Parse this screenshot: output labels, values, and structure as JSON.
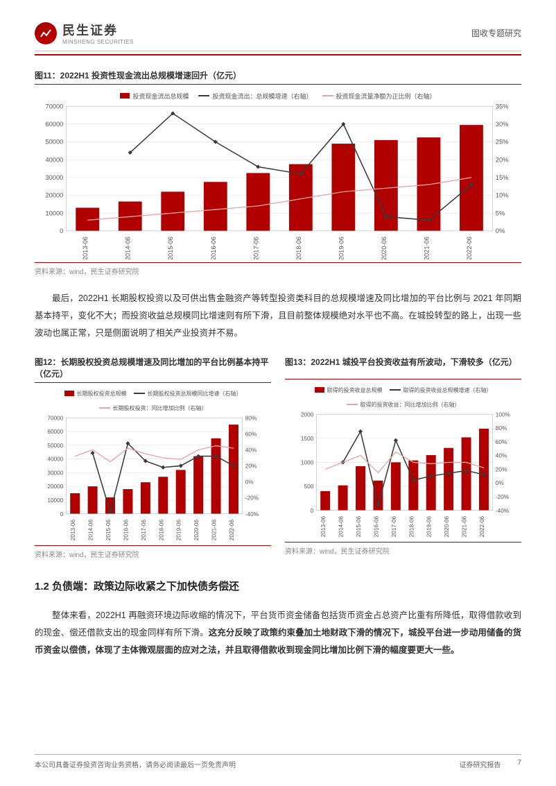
{
  "header": {
    "company_cn": "民生证券",
    "company_en": "MINSHENG SECURITIES",
    "category": "固收专题研究"
  },
  "fig11": {
    "title": "图11：2022H1 投资性现金流出总规模增速回升（亿元）",
    "source": "资料来源：wind，民生证券研究院",
    "legend": {
      "bar": "投资现金流出总规模",
      "line1": "投资现金流出：总规模增速（右轴）",
      "line2": "投资现金流量净额为正比例（右轴）"
    },
    "categories": [
      "2013-06",
      "2014-06",
      "2015-06",
      "2016-06",
      "2017-06",
      "2018-06",
      "2019-06",
      "2020-06",
      "2021-06",
      "2022-06"
    ],
    "bar_values": [
      13000,
      16500,
      22000,
      27500,
      32500,
      37500,
      49000,
      51000,
      52500,
      59500
    ],
    "line1_values": [
      null,
      22,
      33,
      25,
      18,
      16,
      30,
      4,
      3,
      13
    ],
    "line2_values": [
      3,
      4,
      5,
      6,
      7,
      9,
      11,
      12,
      13,
      15
    ],
    "ylim_left": [
      0,
      70000
    ],
    "ytick_left": [
      0,
      10000,
      20000,
      30000,
      40000,
      50000,
      60000,
      70000
    ],
    "ylim_right": [
      0,
      35
    ],
    "ytick_right": [
      "0%",
      "5%",
      "10%",
      "15%",
      "20%",
      "25%",
      "30%",
      "35%"
    ],
    "bar_color": "#b00000",
    "line1_color": "#3a3a3a",
    "line2_color": "#e8a4a4",
    "bg": "#ffffff"
  },
  "para1": "最后，2022H1 长期股权投资以及可供出售金融资产等转型投资类科目的总规模增速及同比增加的平台比例与 2021 年同期基本持平，变化不大；而投资收益总规模同比增速则有所下滑，且目前整体规模绝对水平也不高。在城投转型的路上，出现一些波动也属正常，只是侧面说明了相关产业投资并不易。",
  "fig12": {
    "title": "图12：长期股权投资总规模增速及同比增加的平台比例基本持平（亿元）",
    "source": "资料来源：wind，民生证券研究院",
    "legend": {
      "bar": "长期股权投资总规模",
      "line1": "长期股权投资总规模同比增速（右轴）",
      "line2": "长期股权投资：同比增加比例（右轴）"
    },
    "categories": [
      "2013-06",
      "2014-06",
      "2015-06",
      "2016-06",
      "2017-06",
      "2018-06",
      "2019-06",
      "2020-06",
      "2021-06",
      "2022-06"
    ],
    "bar_values": [
      15000,
      20000,
      12000,
      18000,
      23000,
      27000,
      32000,
      42000,
      55000,
      65000
    ],
    "line1_values": [
      null,
      36,
      -38,
      48,
      26,
      18,
      20,
      32,
      32,
      20
    ],
    "line2_values": [
      32,
      40,
      25,
      42,
      35,
      30,
      28,
      40,
      45,
      42
    ],
    "ylim_left": [
      0,
      70000
    ],
    "ytick_left": [
      0,
      10000,
      20000,
      30000,
      40000,
      50000,
      60000,
      70000
    ],
    "ylim_right": [
      -40,
      80
    ],
    "ytick_right": [
      "-40%",
      "-20%",
      "0%",
      "20%",
      "40%",
      "60%",
      "80%"
    ],
    "bar_color": "#b00000",
    "line1_color": "#3a3a3a",
    "line2_color": "#e8a4a4"
  },
  "fig13": {
    "title": "图13：2022H1 城投平台投资收益有所波动，下滑较多（亿元）",
    "source": "资料来源：wind，民生证券研究院",
    "legend": {
      "bar": "取得的投资收益总规模",
      "line1": "取得的投资收益总规模增速（右轴）",
      "line2": "取得的投资收益：同比增加比例（右轴）"
    },
    "categories": [
      "2013-06",
      "2014-06",
      "2015-06",
      "2016-06",
      "2017-06",
      "2018-06",
      "2019-06",
      "2020-06",
      "2021-06",
      "2022-06"
    ],
    "bar_values": [
      400,
      520,
      920,
      620,
      1000,
      1040,
      1150,
      1300,
      1520,
      1700
    ],
    "line1_values": [
      null,
      30,
      75,
      -32,
      62,
      4,
      10,
      14,
      18,
      12
    ],
    "line2_values": [
      20,
      30,
      40,
      15,
      45,
      30,
      28,
      30,
      30,
      22
    ],
    "ylim_left": [
      0,
      2000
    ],
    "ytick_left": [
      0,
      500,
      1000,
      1500,
      2000
    ],
    "ylim_right": [
      -40,
      100
    ],
    "ytick_right": [
      "-40%",
      "-20%",
      "0%",
      "20%",
      "40%",
      "60%",
      "80%",
      "100%"
    ],
    "bar_color": "#b00000",
    "line1_color": "#3a3a3a",
    "line2_color": "#e8a4a4"
  },
  "section_head": "1.2 负债端：政策边际收紧之下加快债务偿还",
  "para2_lead": "整体来看，2022H1 再融资环境边际收缩的情况下，平台货币资金储备包括货币资金占总资产比重有所降低，取得借款收到的现金、偿还借款支出的现金同样有所下滑。",
  "para2_bold": "这充分反映了政策约束叠加土地财政下滑的情况下，城投平台进一步动用储备的货币资金以偿债，体现了主体微观层面的应对之法，并且取得借款收到现金同比增加比例下滑的幅度要更大一些。",
  "footer": {
    "left": "本公司具备证券投资咨询业务资格，请务必阅读最后一页免责声明",
    "right1": "证券研究报告",
    "right2": "7"
  }
}
